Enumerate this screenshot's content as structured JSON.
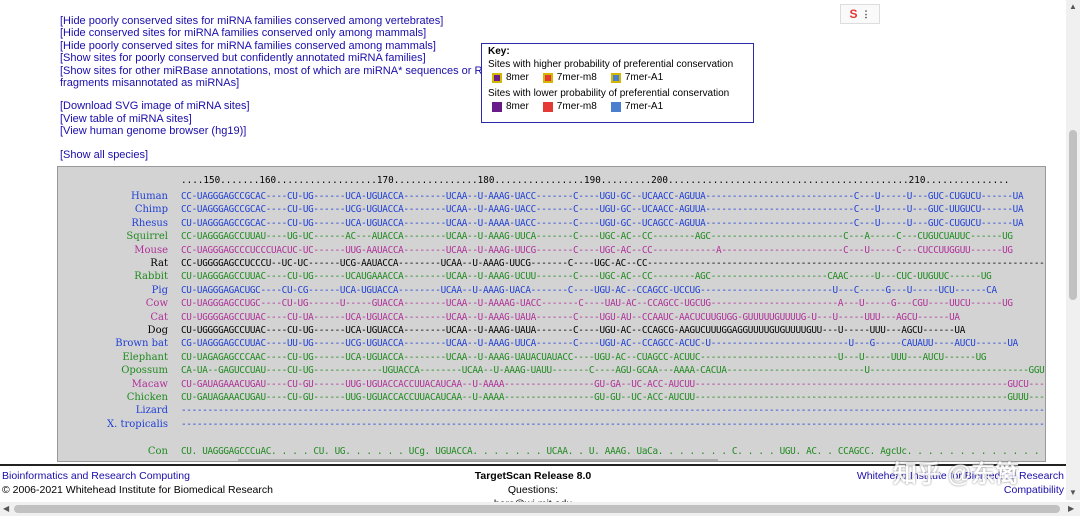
{
  "links": {
    "group1": [
      "[Hide poorly conserved sites for miRNA families conserved among vertebrates]",
      "[Hide conserved sites for miRNA families conserved only among mammals]",
      "[Hide poorly conserved sites for miRNA families conserved among mammals]",
      "[Show sites for poorly conserved but confidently annotated miRNA families]",
      "[Show sites for other miRBase annotations, most of which are miRNA* sequences or RNA fragments misannotated as miRNAs]"
    ],
    "group2": [
      "[Download SVG image of miRNA sites]",
      "[View table of miRNA sites]",
      "[View human genome browser (hg19)]"
    ],
    "show_all": "[Show all species]"
  },
  "key": {
    "title": "Key:",
    "higher_label": "Sites with higher probability of preferential conservation",
    "lower_label": "Sites with lower probability of preferential conservation",
    "items_high": [
      {
        "label": "8mer",
        "color": "#6a1b8a"
      },
      {
        "label": "7mer-m8",
        "color": "#e53935"
      },
      {
        "label": "7mer-A1",
        "color": "#4a7fcf"
      }
    ],
    "items_low": [
      {
        "label": "8mer",
        "color": "#6a1b8a"
      },
      {
        "label": "7mer-m8",
        "color": "#e53935"
      },
      {
        "label": "7mer-A1",
        "color": "#4a7fcf"
      }
    ]
  },
  "alignment": {
    "ruler": "....150.......160..................170...............180................190.........200...........................................210...............",
    "rows": [
      {
        "species": "Human",
        "color": "#1f3fd6",
        "seq": "CC-UAGGGAGCCGCAC----CU-UG------UCA-UGUACCA--------UCAA--U-AAAG-UACC-------C----UGU-GC--UCAACC-AGUUA----------------------------C---U-----U---GUC-CUGUCU------UA"
      },
      {
        "species": "Chimp",
        "color": "#1f3fd6",
        "seq": "CC-UAGGGAGCCGCAC----CU-UG------UCG-UGUACCA--------UCAA--U-AAAG-UACC-------C----UGU-GC--UCAACC-AGUUA----------------------------C---U-----U---GUC-UUGUCU------UA"
      },
      {
        "species": "Rhesus",
        "color": "#1f3fd6",
        "seq": "CU-UAGGGAGCCGCAC----CU-UG------UCA-UGUACCA--------UCAA--U-AAAA-UACC-------C----UGU-GC--UCAGCC-AGUUA----------------------------C---U-----U---GUC-CUGUCU------UA"
      },
      {
        "species": "Squirrel",
        "color": "#1f8a1f",
        "seq": "CC-UAGGGAGCCUUAU----UG-UC------AC---AUACCA--------UCAA--U-AAAG-UUCA-------C----UGC-AC--CC--------AGC-------------------------C---A-----C---CUGUCUAUUC------UG"
      },
      {
        "species": "Mouse",
        "color": "#b0309a",
        "seq": "CC-UAGGGAGCCCUCCCUACUC-UC------UUG-AAUACCA--------UCAA--U-AAAG-UUCG-------C----UGC-AC--CC------------A-----------------------C---U-----C---CUCCUUGGUU------UG"
      },
      {
        "species": "Rat",
        "color": "#000000",
        "seq": "CC-UGGGGAGCCUCCCU--UC-UC------UCG-AAUACCA--------UCAA--U-AAAG-UUCG-------C----UGC-AC--CC---------------------------------------------------------------------------"
      },
      {
        "species": "Rabbit",
        "color": "#1f8a1f",
        "seq": "CU-UAGGGAGCCUUAC----CU-UG------UCAUGAAACCA--------UCAA--U-AAAG-UCUU-------C----UGC-AC--CC--------AGC----------------------CAAC-----U---CUC-UUGUUC------UG"
      },
      {
        "species": "Pig",
        "color": "#1f3fd6",
        "seq": "CU-UAGGGAGACUGC----CU-CG------UCA-UGUACCA--------UCAA--U-AAAG-UACA-------C----UGU-AC--CCAGCC-UCCUG-------------------------U---C-----G---U-----UCU------CA"
      },
      {
        "species": "Cow",
        "color": "#b0309a",
        "seq": "CU-UAGGGAGCCUGC----CU-UG------U-----GUACCA--------UCAA--U-AAAAG-UACC-------C----UAU-AC--CCAGCC-UGCUG------------------------A---U-----G---CGU----UUCU------UG"
      },
      {
        "species": "Cat",
        "color": "#b0309a",
        "seq": "CU-UGGGGAGCCUUAC----CU-UA------UCA-UGUACCA--------UCAA--U-AAAG-UAUA-------C----UGU-AU--CCAAUC-AACUCUUGUGG-GUUUUUGUUUUG-U---U-----UUU---AGCU------UA"
      },
      {
        "species": "Dog",
        "color": "#000000",
        "seq": "CU-UGGGGAGCCUUAC----CU-UG------UCA-UGUACCA--------UCAA--U-AAAG-UAUA-------C----UGU-AC--CCAGCG-AAGUCUUUGGAGGUUUUGUGUUUUGUU---U-----UUU---AGCU------UA"
      },
      {
        "species": "Brown bat",
        "color": "#1f3fd6",
        "seq": "CG-UAGGGAGCCUUAC----UU-UG------UCG-UGUACCA--------UCAA--U-AAAG-UUCA-------C----UGU-AC--CCAGCC-ACUC-U--------------------------U---G-----CAUAUU----AUCU------UA"
      },
      {
        "species": "Elephant",
        "color": "#1f8a1f",
        "seq": "CU-UAGAGAGCCCAAC----CU-UG------UCA-UGUACCA--------UCAA--U-AAAG-UAUACUAUACC----UGU-AC--CUAGCC-ACUUC--------------------------U---U-----UUU---AUCU------UG"
      },
      {
        "species": "Opossum",
        "color": "#1f8a1f",
        "seq": "CA-UA--GAGUCCUAU----CU-UG-------------UGUACCA--------UCAA--U-AAAG-UAUU-------C----AGU-GCAA---AAAA-CACUA--------------------------U------------------------------GGU-"
      },
      {
        "species": "Macaw",
        "color": "#b0309a",
        "seq": "CU-GAUAGAAACUGAU----CU-GU------UUG-UGUACCACCUUACAUCAA--U-AAAA-----------------GU-GA--UC-ACC-AUCUU-----------------------------------------------------------GUCU-------"
      },
      {
        "species": "Chicken",
        "color": "#1f8a1f",
        "seq": "CU-GAUAGAAACUGAU----CU-GU------UUG-UGUACCACCUUACAUCAA--U-AAAA-----------------GU-GU--UC-ACC-AUCUU-----------------------------------------------------------GUUU-------"
      },
      {
        "species": "Lizard",
        "color": "#1f3fd6",
        "seq": "-----------------------------------------------------------------------------------------------------------------------------------------------------------------------------"
      },
      {
        "species": "X. tropicalis",
        "color": "#1f3fd6",
        "seq": "-----------------------------------------------------------------------------------------------------------------------------------------------------------------------------"
      },
      {
        "species": "Con",
        "color": "#1f8a1f",
        "seq": "CU. UAGGGAGCCCuAC. . . . CU. UG. . . . . . UCg. UGUACCA. . . . . . . UCAA. . U. AAAG. UaCa. . . . . . . C. . . . UGU. AC. . CCAGCC. AgcUc. . . . . . . . . . . . . . . . . . . . . . . . U. . u. . . . . . u. . . . . U. . . gUCU. . . . . Ua"
      }
    ]
  },
  "footer": {
    "left_link": "Bioinformatics and Research Computing",
    "left_text": "© 2006-2021 Whitehead Institute for Biomedical Research",
    "center_title": "TargetScan Release 8.0",
    "center_text": "Questions: barc@wi.mit.edu",
    "right_link": "Whitehead Institute for Biomedical Research",
    "right_link2": "Compatibility"
  },
  "widget": {
    "label": "S"
  },
  "watermark": "知乎 @东篱"
}
